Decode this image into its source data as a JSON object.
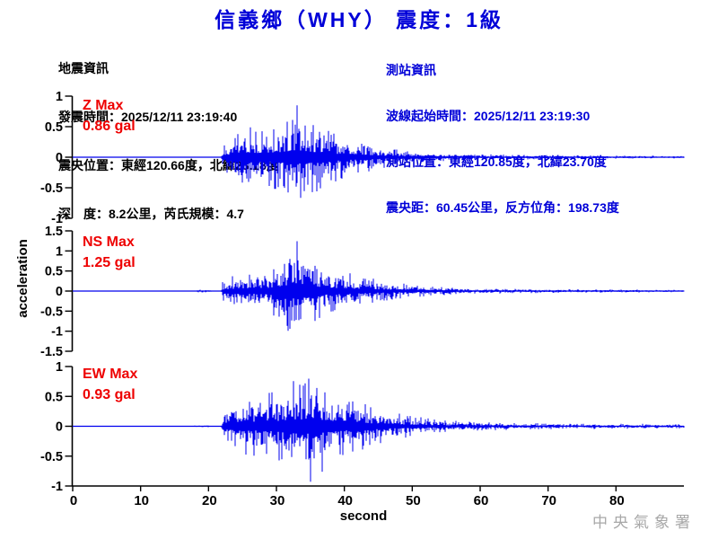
{
  "title": "信義鄉（WHY） 震度：1級",
  "event_info": {
    "heading": "地震資訊",
    "lines": [
      "發震時間：2025/12/11 23:19:40",
      "震央位置：東經120.66度，北緯23.18度",
      "深　度：8.2公里，芮氏規模：4.7"
    ]
  },
  "station_info": {
    "heading": "測站資訊",
    "lines": [
      "波線起始時間：2025/12/11 23:19:30",
      "測站位置：東經120.85度，北緯23.70度",
      "震央距：60.45公里，反方位角：198.73度"
    ]
  },
  "watermark": "中央氣象署",
  "colors": {
    "title": "#0000d8",
    "event_info": "#000000",
    "station_info": "#0000d8",
    "waveform": "#0000ee",
    "max_label": "#ee0000",
    "axis": "#000000",
    "watermark": "#a8a8a8"
  },
  "chart_data": {
    "type": "line",
    "subtype": "seismogram-3-component",
    "xlabel": "second",
    "ylabel": "acceleration",
    "amplitude_unit": "gal",
    "x_range": [
      0,
      90
    ],
    "x_ticks": [
      0,
      10,
      20,
      30,
      40,
      50,
      60,
      70,
      80
    ],
    "panels": [
      {
        "id": "Z",
        "max_label": "Z Max",
        "max_value": "0.86 gal",
        "peak_gal": 0.86,
        "ylim": 1,
        "y_ticks": [
          1,
          0.5,
          0,
          -0.5,
          -1
        ],
        "onset_s": 22.1,
        "peak_s": 33,
        "peak_polarity": 1,
        "envelope": [
          [
            0,
            0.004
          ],
          [
            21.9,
            0.004
          ],
          [
            22.1,
            0.22
          ],
          [
            23,
            0.32
          ],
          [
            24,
            0.42
          ],
          [
            25,
            0.5
          ],
          [
            26,
            0.55
          ],
          [
            27,
            0.48
          ],
          [
            28,
            0.55
          ],
          [
            29,
            0.5
          ],
          [
            30,
            0.62
          ],
          [
            31,
            0.55
          ],
          [
            32,
            0.72
          ],
          [
            33,
            0.86
          ],
          [
            33.6,
            0.68
          ],
          [
            34.5,
            0.72
          ],
          [
            35.5,
            0.6
          ],
          [
            36.5,
            0.52
          ],
          [
            37.5,
            0.46
          ],
          [
            38.5,
            0.42
          ],
          [
            40,
            0.34
          ],
          [
            41,
            0.3
          ],
          [
            42,
            0.27
          ],
          [
            43,
            0.3
          ],
          [
            44,
            0.24
          ],
          [
            45,
            0.2
          ],
          [
            46,
            0.17
          ],
          [
            47,
            0.14
          ],
          [
            48,
            0.12
          ],
          [
            50,
            0.1
          ],
          [
            52,
            0.08
          ],
          [
            55,
            0.06
          ],
          [
            58,
            0.05
          ],
          [
            62,
            0.045
          ],
          [
            66,
            0.04
          ],
          [
            70,
            0.035
          ],
          [
            75,
            0.03
          ],
          [
            80,
            0.027
          ],
          [
            85,
            0.024
          ],
          [
            90,
            0.022
          ]
        ]
      },
      {
        "id": "NS",
        "max_label": "NS Max",
        "max_value": "1.25 gal",
        "peak_gal": 1.25,
        "ylim": 1.5,
        "y_ticks": [
          1.5,
          1,
          0.5,
          0,
          -0.5,
          -1,
          -1.5
        ],
        "onset_s": 22.1,
        "peak_s": 33,
        "peak_polarity": 1,
        "envelope": [
          [
            0,
            0.004
          ],
          [
            6.5,
            0.004
          ],
          [
            6.8,
            0.025
          ],
          [
            7.1,
            0.004
          ],
          [
            9.9,
            0.004
          ],
          [
            10.1,
            0.025
          ],
          [
            10.4,
            0.004
          ],
          [
            18.2,
            0.004
          ],
          [
            18.4,
            0.035
          ],
          [
            19.5,
            0.03
          ],
          [
            20.3,
            0.035
          ],
          [
            20.6,
            0.01
          ],
          [
            21.9,
            0.01
          ],
          [
            22.1,
            0.28
          ],
          [
            23,
            0.35
          ],
          [
            24,
            0.42
          ],
          [
            25,
            0.5
          ],
          [
            26,
            0.48
          ],
          [
            27,
            0.45
          ],
          [
            28,
            0.5
          ],
          [
            29,
            0.55
          ],
          [
            30,
            0.65
          ],
          [
            30.8,
            0.85
          ],
          [
            31.5,
            1.0
          ],
          [
            32.3,
            1.15
          ],
          [
            33,
            1.25
          ],
          [
            33.8,
            1.1
          ],
          [
            34.5,
            0.95
          ],
          [
            35.5,
            0.8
          ],
          [
            36.5,
            0.65
          ],
          [
            37.5,
            0.6
          ],
          [
            38.5,
            0.55
          ],
          [
            40,
            0.48
          ],
          [
            42,
            0.4
          ],
          [
            44,
            0.32
          ],
          [
            46,
            0.26
          ],
          [
            48,
            0.21
          ],
          [
            50,
            0.17
          ],
          [
            52,
            0.13
          ],
          [
            55,
            0.1
          ],
          [
            58,
            0.08
          ],
          [
            62,
            0.065
          ],
          [
            66,
            0.055
          ],
          [
            70,
            0.05
          ],
          [
            75,
            0.045
          ],
          [
            80,
            0.04
          ],
          [
            85,
            0.035
          ],
          [
            90,
            0.032
          ]
        ]
      },
      {
        "id": "EW",
        "max_label": "EW Max",
        "max_value": "0.93 gal",
        "peak_gal": 0.93,
        "ylim": 1,
        "y_ticks": [
          1,
          0.5,
          0,
          -0.5,
          -1
        ],
        "onset_s": 22.1,
        "peak_s": 35,
        "peak_polarity": -1,
        "envelope": [
          [
            0,
            0.004
          ],
          [
            17.8,
            0.004
          ],
          [
            18,
            0.02
          ],
          [
            19,
            0.018
          ],
          [
            20,
            0.02
          ],
          [
            20.4,
            0.006
          ],
          [
            21.9,
            0.006
          ],
          [
            22.1,
            0.32
          ],
          [
            23,
            0.4
          ],
          [
            24,
            0.45
          ],
          [
            25,
            0.5
          ],
          [
            26,
            0.52
          ],
          [
            27,
            0.5
          ],
          [
            28,
            0.55
          ],
          [
            29,
            0.58
          ],
          [
            30,
            0.62
          ],
          [
            31,
            0.7
          ],
          [
            32,
            0.78
          ],
          [
            33,
            0.85
          ],
          [
            34,
            0.8
          ],
          [
            35,
            0.93
          ],
          [
            36,
            0.88
          ],
          [
            37,
            0.72
          ],
          [
            38,
            0.62
          ],
          [
            39,
            0.56
          ],
          [
            40,
            0.5
          ],
          [
            42,
            0.42
          ],
          [
            44,
            0.35
          ],
          [
            46,
            0.28
          ],
          [
            48,
            0.23
          ],
          [
            50,
            0.19
          ],
          [
            52,
            0.15
          ],
          [
            55,
            0.1
          ],
          [
            58,
            0.085
          ],
          [
            62,
            0.07
          ],
          [
            66,
            0.06
          ],
          [
            70,
            0.055
          ],
          [
            75,
            0.05
          ],
          [
            80,
            0.045
          ],
          [
            85,
            0.04
          ],
          [
            90,
            0.038
          ]
        ]
      }
    ]
  }
}
